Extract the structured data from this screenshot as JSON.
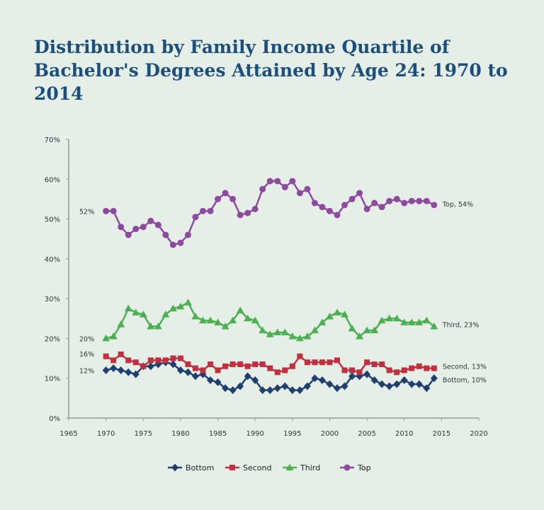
{
  "chart_data": {
    "type": "line",
    "title": "Distribution by Family Income Quartile of Bachelor's Degrees Attained by Age 24: 1970 to 2014",
    "xlabel": "",
    "ylabel": "",
    "xlim": [
      1965,
      2020
    ],
    "ylim": [
      0,
      70
    ],
    "x_ticks": [
      "1965",
      "1970",
      "1975",
      "1980",
      "1985",
      "1990",
      "1995",
      "2000",
      "2005",
      "2010",
      "2015",
      "2020"
    ],
    "y_ticks": [
      "0%",
      "10%",
      "20%",
      "30%",
      "40%",
      "50%",
      "60%",
      "70%"
    ],
    "grid": false,
    "legend_placement": "bottom",
    "x": [
      1970,
      1971,
      1972,
      1973,
      1974,
      1975,
      1976,
      1977,
      1978,
      1979,
      1980,
      1981,
      1982,
      1983,
      1984,
      1985,
      1986,
      1987,
      1988,
      1989,
      1990,
      1991,
      1992,
      1993,
      1994,
      1995,
      1996,
      1997,
      1998,
      1999,
      2000,
      2001,
      2002,
      2003,
      2004,
      2005,
      2006,
      2007,
      2008,
      2009,
      2010,
      2011,
      2012,
      2013,
      2014
    ],
    "series": [
      {
        "name": "Bottom",
        "color": "#1f3f6e",
        "marker": "diamond",
        "start_label": "12%",
        "end_label": "Bottom, 10%",
        "values": [
          12,
          12.5,
          12,
          11.5,
          11,
          13,
          13,
          13.5,
          14,
          13.5,
          12,
          11.5,
          10.5,
          11,
          9.5,
          9,
          7.5,
          7,
          8,
          10.5,
          9.5,
          7,
          7,
          7.5,
          8,
          7,
          7,
          8,
          10,
          9.5,
          8.5,
          7.5,
          8,
          10.5,
          10.5,
          11,
          9.5,
          8.5,
          8,
          8.5,
          9.5,
          8.5,
          8.5,
          7.5,
          10
        ]
      },
      {
        "name": "Second",
        "color": "#c0303f",
        "marker": "square",
        "start_label": "16%",
        "end_label": "Second, 13%",
        "values": [
          15.5,
          14.5,
          16,
          14.5,
          14,
          13,
          14.5,
          14.5,
          14.5,
          15,
          15,
          13.5,
          12.5,
          12,
          13.5,
          12,
          13,
          13.5,
          13.5,
          13,
          13.5,
          13.5,
          12.5,
          11.5,
          12,
          13,
          15.5,
          14,
          14,
          14,
          14,
          14.5,
          12,
          12,
          11.5,
          14,
          13.5,
          13.5,
          12,
          11.5,
          12,
          12.5,
          13,
          12.5,
          12.5
        ]
      },
      {
        "name": "Third",
        "color": "#4caf50",
        "marker": "triangle",
        "start_label": "20%",
        "end_label": "Third, 23%",
        "values": [
          20,
          20.5,
          23.5,
          27.5,
          26.5,
          26,
          23,
          23,
          26,
          27.5,
          28,
          29,
          25.5,
          24.5,
          24.5,
          24,
          23,
          24.5,
          27,
          25,
          24.5,
          22,
          21,
          21.5,
          21.5,
          20.5,
          20,
          20.5,
          22,
          24,
          25.5,
          26.5,
          26,
          22.5,
          20.5,
          22,
          22,
          24.5,
          25,
          25,
          24,
          24,
          24,
          24.5,
          23
        ]
      },
      {
        "name": "Top",
        "color": "#8e4a9e",
        "marker": "circle",
        "start_label": "52%",
        "end_label": "Top, 54%",
        "values": [
          52,
          52,
          48,
          46,
          47.5,
          48,
          49.5,
          48.5,
          46,
          43.5,
          44,
          46,
          50.5,
          52,
          52,
          55,
          56.5,
          55,
          51,
          51.5,
          52.5,
          57.5,
          59.5,
          59.5,
          58,
          59.5,
          56.5,
          57.5,
          54,
          53,
          52,
          51,
          53.5,
          55,
          56.5,
          52.5,
          54,
          53,
          54.5,
          55,
          54,
          54.5,
          54.5,
          54.5,
          53.5
        ]
      }
    ]
  }
}
